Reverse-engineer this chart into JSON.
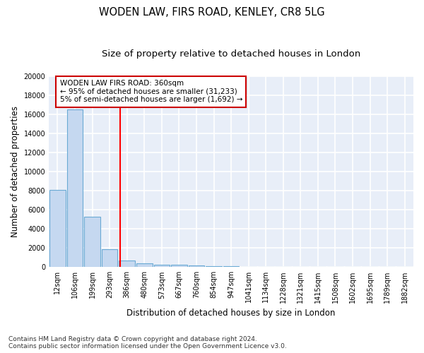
{
  "title": "WODEN LAW, FIRS ROAD, KENLEY, CR8 5LG",
  "subtitle": "Size of property relative to detached houses in London",
  "xlabel": "Distribution of detached houses by size in London",
  "ylabel": "Number of detached properties",
  "footnote": "Contains HM Land Registry data © Crown copyright and database right 2024.\nContains public sector information licensed under the Open Government Licence v3.0.",
  "bar_labels": [
    "12sqm",
    "106sqm",
    "199sqm",
    "293sqm",
    "386sqm",
    "480sqm",
    "573sqm",
    "667sqm",
    "760sqm",
    "854sqm",
    "947sqm",
    "1041sqm",
    "1134sqm",
    "1228sqm",
    "1321sqm",
    "1415sqm",
    "1508sqm",
    "1602sqm",
    "1695sqm",
    "1789sqm",
    "1882sqm"
  ],
  "bar_values": [
    8100,
    16500,
    5300,
    1850,
    700,
    370,
    280,
    230,
    200,
    120,
    80,
    50,
    30,
    20,
    15,
    10,
    8,
    6,
    4,
    3,
    2
  ],
  "bar_color": "#c5d8f0",
  "bar_edge_color": "#6aaad4",
  "red_line_x": 3.62,
  "annotation_text": "WODEN LAW FIRS ROAD: 360sqm\n← 95% of detached houses are smaller (31,233)\n5% of semi-detached houses are larger (1,692) →",
  "annotation_box_color": "#ffffff",
  "annotation_box_edge": "#cc0000",
  "ylim": [
    0,
    20000
  ],
  "yticks": [
    0,
    2000,
    4000,
    6000,
    8000,
    10000,
    12000,
    14000,
    16000,
    18000,
    20000
  ],
  "plot_bg_color": "#e8eef8",
  "fig_bg_color": "#ffffff",
  "grid_color": "#ffffff",
  "title_fontsize": 10.5,
  "subtitle_fontsize": 9.5,
  "axis_label_fontsize": 8.5,
  "tick_fontsize": 7,
  "footnote_fontsize": 6.5,
  "annotation_fontsize": 7.5
}
